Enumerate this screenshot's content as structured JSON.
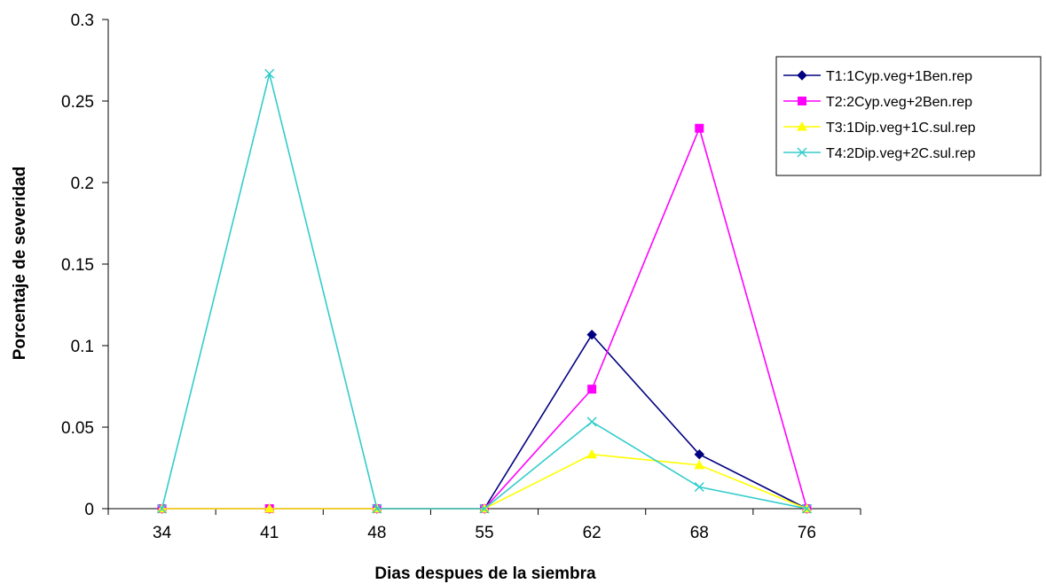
{
  "chart_data": {
    "type": "line",
    "xlabel": "Dias despues de la siembra",
    "ylabel": "Porcentaje de severidad",
    "categories": [
      "34",
      "41",
      "48",
      "55",
      "62",
      "68",
      "76"
    ],
    "ylim": [
      0,
      0.3
    ],
    "yticks": [
      "0",
      "0.05",
      "0.1",
      "0.15",
      "0.2",
      "0.25",
      "0.3"
    ],
    "grid": false,
    "legend_position": "top-right",
    "series": [
      {
        "name": "T1:1Cyp.veg+1Ben.rep",
        "color": "#000080",
        "marker": "diamond",
        "values": [
          0,
          0,
          0,
          0,
          0.1067,
          0.0333,
          0
        ]
      },
      {
        "name": "T2:2Cyp.veg+2Ben.rep",
        "color": "#FF00FF",
        "marker": "square",
        "values": [
          0,
          0,
          0,
          0,
          0.0733,
          0.2333,
          0
        ]
      },
      {
        "name": "T3:1Dip.veg+1C.sul.rep",
        "color": "#FFFF00",
        "marker": "triangle",
        "values": [
          0,
          0,
          0,
          0,
          0.0333,
          0.0267,
          0
        ]
      },
      {
        "name": "T4:2Dip.veg+2C.sul.rep",
        "color": "#33CCCC",
        "marker": "x",
        "values": [
          0,
          0.2667,
          0,
          0,
          0.0533,
          0.0133,
          0
        ]
      }
    ]
  }
}
